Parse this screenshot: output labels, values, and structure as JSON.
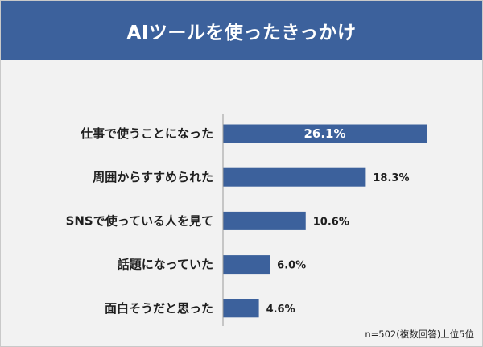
{
  "header": {
    "title": "AIツールを使ったきっかけ"
  },
  "note": "n=502(複数回答)上位5位",
  "colors": {
    "header": "#3c619c",
    "bar": "#3c619c",
    "background": "#f2f2f2"
  },
  "chart_data": {
    "type": "bar",
    "orientation": "horizontal",
    "categories": [
      "仕事で使うことになった",
      "周囲からすすめられた",
      "SNSで使っている人を見て",
      "話題になっていた",
      "面白そうだと思った"
    ],
    "values": [
      26.1,
      18.3,
      10.6,
      6.0,
      4.6
    ],
    "value_labels": [
      "26.1%",
      "18.3%",
      "10.6%",
      "6.0%",
      "4.6%"
    ],
    "unit": "%",
    "xlim": [
      0,
      26.1
    ],
    "grid": false,
    "legend": "none"
  }
}
